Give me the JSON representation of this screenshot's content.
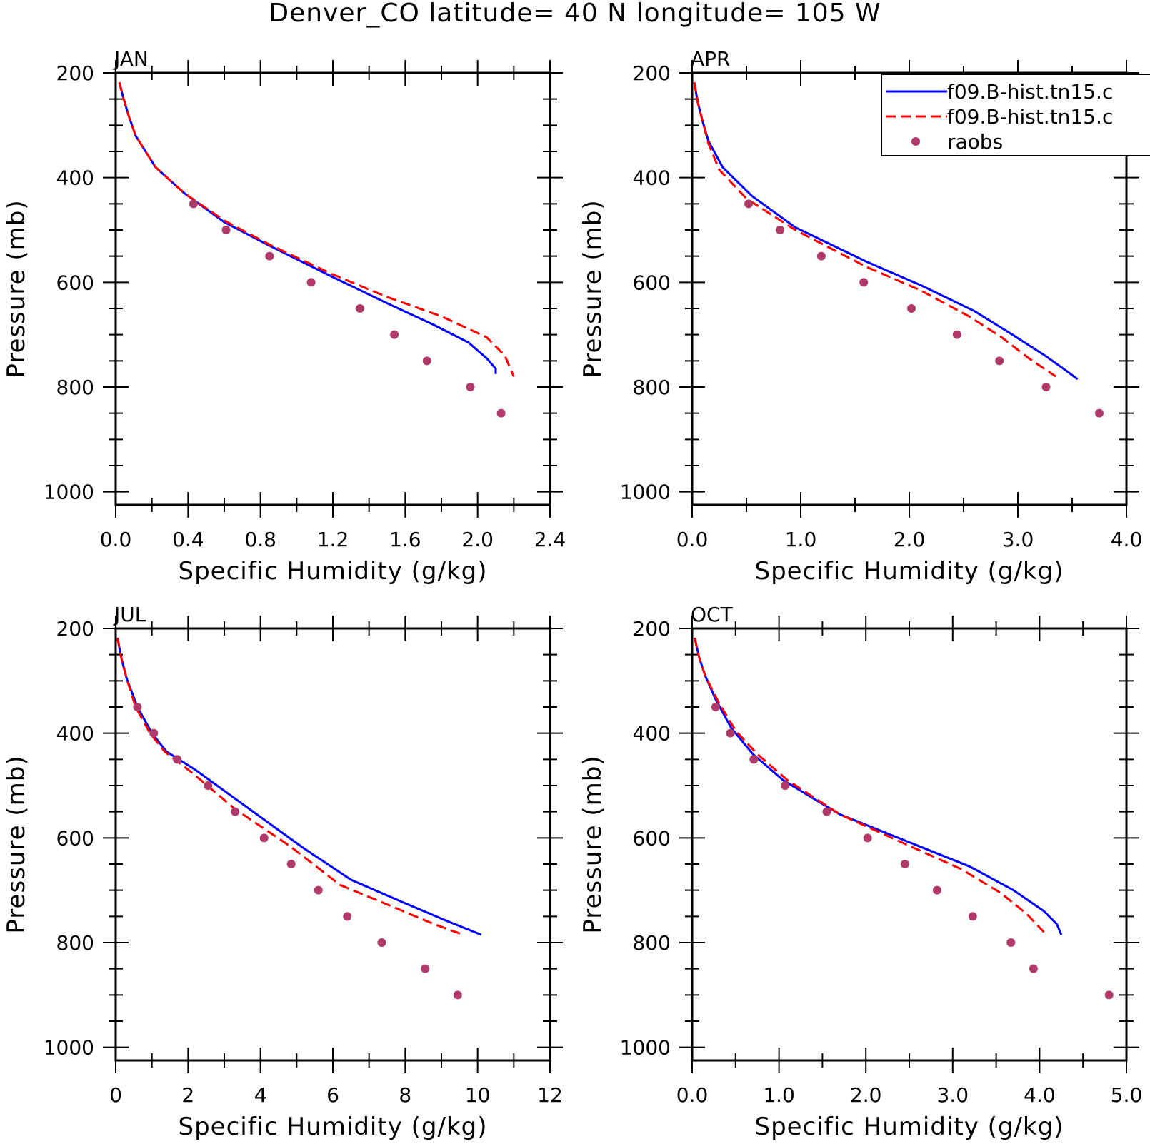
{
  "chart_data": {
    "type": "line",
    "title": "Denver_CO  latitude= 40 N longitude= 105 W",
    "ylabel": "Pressure (mb)",
    "xlabel": "Specific Humidity (g/kg)",
    "y_axis_inverted": true,
    "ylim": [
      1025,
      200
    ],
    "yticks": [
      200,
      400,
      600,
      800,
      1000
    ],
    "yticks_labels": [
      "200",
      "400",
      "600",
      "800",
      "1000"
    ],
    "legend": {
      "placement": "top-right",
      "entries": [
        {
          "label": "f09.B-hist.tn15.c",
          "style": "solid",
          "color": "#0000ff"
        },
        {
          "label": "f09.B-hist.tn15.c",
          "style": "dashed",
          "color": "#ff0000"
        },
        {
          "label": "raobs",
          "style": "marker",
          "color": "#b03a6a"
        }
      ]
    },
    "panels": [
      {
        "label": "JAN",
        "xlim": [
          0,
          2.4
        ],
        "xticks": [
          0,
          0.4,
          0.8,
          1.2,
          1.6,
          2.0,
          2.4
        ],
        "xticks_labels": [
          "0.0",
          "0.4",
          "0.8",
          "1.2",
          "1.6",
          "2.0",
          "2.4"
        ],
        "series": [
          {
            "style": "solid",
            "color": "#0000ff",
            "points": [
              [
                0.02,
                218
              ],
              [
                0.04,
                245
              ],
              [
                0.07,
                280
              ],
              [
                0.11,
                320
              ],
              [
                0.22,
                380
              ],
              [
                0.38,
                430
              ],
              [
                0.6,
                485
              ],
              [
                0.85,
                530
              ],
              [
                1.2,
                590
              ],
              [
                1.5,
                640
              ],
              [
                1.75,
                680
              ],
              [
                1.95,
                715
              ],
              [
                2.05,
                745
              ],
              [
                2.1,
                765
              ],
              [
                2.1,
                775
              ]
            ]
          },
          {
            "style": "dashed",
            "color": "#ff0000",
            "points": [
              [
                0.02,
                218
              ],
              [
                0.04,
                245
              ],
              [
                0.07,
                280
              ],
              [
                0.11,
                320
              ],
              [
                0.22,
                380
              ],
              [
                0.38,
                430
              ],
              [
                0.6,
                482
              ],
              [
                0.85,
                528
              ],
              [
                1.2,
                585
              ],
              [
                1.5,
                628
              ],
              [
                1.8,
                665
              ],
              [
                2.05,
                705
              ],
              [
                2.15,
                740
              ],
              [
                2.2,
                780
              ]
            ]
          },
          {
            "style": "marker",
            "color": "#b03a6a",
            "points": [
              [
                0.43,
                450
              ],
              [
                0.61,
                500
              ],
              [
                0.85,
                550
              ],
              [
                1.08,
                600
              ],
              [
                1.35,
                650
              ],
              [
                1.54,
                700
              ],
              [
                1.72,
                750
              ],
              [
                1.96,
                800
              ],
              [
                2.13,
                850
              ]
            ]
          }
        ]
      },
      {
        "label": "APR",
        "xlim": [
          0,
          4.0
        ],
        "xticks": [
          0,
          1,
          2,
          3,
          4
        ],
        "xticks_labels": [
          "0.0",
          "1.0",
          "2.0",
          "3.0",
          "4.0"
        ],
        "series": [
          {
            "style": "solid",
            "color": "#0000ff",
            "points": [
              [
                0.02,
                218
              ],
              [
                0.05,
                255
              ],
              [
                0.1,
                295
              ],
              [
                0.15,
                330
              ],
              [
                0.28,
                380
              ],
              [
                0.55,
                435
              ],
              [
                0.95,
                495
              ],
              [
                1.6,
                560
              ],
              [
                2.1,
                605
              ],
              [
                2.6,
                655
              ],
              [
                2.95,
                700
              ],
              [
                3.25,
                740
              ],
              [
                3.42,
                765
              ],
              [
                3.55,
                785
              ]
            ]
          },
          {
            "style": "dashed",
            "color": "#ff0000",
            "points": [
              [
                0.02,
                218
              ],
              [
                0.05,
                255
              ],
              [
                0.1,
                295
              ],
              [
                0.15,
                335
              ],
              [
                0.25,
                385
              ],
              [
                0.5,
                440
              ],
              [
                0.95,
                500
              ],
              [
                1.6,
                570
              ],
              [
                2.1,
                615
              ],
              [
                2.55,
                665
              ],
              [
                2.85,
                705
              ],
              [
                3.1,
                745
              ],
              [
                3.35,
                780
              ]
            ]
          },
          {
            "style": "marker",
            "color": "#b03a6a",
            "points": [
              [
                0.52,
                450
              ],
              [
                0.81,
                500
              ],
              [
                1.19,
                550
              ],
              [
                1.58,
                600
              ],
              [
                2.02,
                650
              ],
              [
                2.44,
                700
              ],
              [
                2.83,
                750
              ],
              [
                3.26,
                800
              ],
              [
                3.75,
                850
              ]
            ]
          }
        ]
      },
      {
        "label": "JUL",
        "xlim": [
          0,
          12
        ],
        "xticks": [
          0,
          2,
          4,
          6,
          8,
          10,
          12
        ],
        "xticks_labels": [
          "0",
          "2",
          "4",
          "6",
          "8",
          "10",
          "12"
        ],
        "series": [
          {
            "style": "solid",
            "color": "#0000ff",
            "points": [
              [
                0.05,
                218
              ],
              [
                0.15,
                255
              ],
              [
                0.3,
                295
              ],
              [
                0.6,
                350
              ],
              [
                1.0,
                400
              ],
              [
                1.4,
                435
              ],
              [
                2.2,
                470
              ],
              [
                3.5,
                535
              ],
              [
                5.2,
                620
              ],
              [
                6.5,
                680
              ],
              [
                8,
                725
              ],
              [
                9.2,
                760
              ],
              [
                10.1,
                785
              ]
            ]
          },
          {
            "style": "dashed",
            "color": "#ff0000",
            "points": [
              [
                0.05,
                218
              ],
              [
                0.15,
                255
              ],
              [
                0.3,
                295
              ],
              [
                0.55,
                350
              ],
              [
                0.95,
                400
              ],
              [
                1.35,
                435
              ],
              [
                2.1,
                475
              ],
              [
                3.3,
                545
              ],
              [
                4.8,
                615
              ],
              [
                6.2,
                690
              ],
              [
                7.6,
                730
              ],
              [
                8.8,
                765
              ],
              [
                9.6,
                785
              ]
            ]
          },
          {
            "style": "marker",
            "color": "#b03a6a",
            "points": [
              [
                0.6,
                350
              ],
              [
                1.05,
                400
              ],
              [
                1.7,
                450
              ],
              [
                2.55,
                500
              ],
              [
                3.3,
                550
              ],
              [
                4.1,
                600
              ],
              [
                4.85,
                650
              ],
              [
                5.6,
                700
              ],
              [
                6.4,
                750
              ],
              [
                7.35,
                800
              ],
              [
                8.55,
                850
              ],
              [
                9.45,
                900
              ]
            ]
          }
        ]
      },
      {
        "label": "OCT",
        "xlim": [
          0,
          5.0
        ],
        "xticks": [
          0,
          1,
          2,
          3,
          4,
          5
        ],
        "xticks_labels": [
          "0.0",
          "1.0",
          "2.0",
          "3.0",
          "4.0",
          "5.0"
        ],
        "series": [
          {
            "style": "solid",
            "color": "#0000ff",
            "points": [
              [
                0.03,
                218
              ],
              [
                0.08,
                255
              ],
              [
                0.15,
                290
              ],
              [
                0.27,
                335
              ],
              [
                0.45,
                390
              ],
              [
                0.7,
                440
              ],
              [
                1.05,
                490
              ],
              [
                1.7,
                555
              ],
              [
                2.6,
                615
              ],
              [
                3.2,
                655
              ],
              [
                3.7,
                700
              ],
              [
                4.05,
                740
              ],
              [
                4.2,
                765
              ],
              [
                4.25,
                785
              ]
            ]
          },
          {
            "style": "dashed",
            "color": "#ff0000",
            "points": [
              [
                0.03,
                218
              ],
              [
                0.08,
                255
              ],
              [
                0.15,
                290
              ],
              [
                0.3,
                340
              ],
              [
                0.5,
                395
              ],
              [
                0.75,
                440
              ],
              [
                1.1,
                490
              ],
              [
                1.7,
                555
              ],
              [
                2.5,
                615
              ],
              [
                3.1,
                660
              ],
              [
                3.55,
                705
              ],
              [
                3.85,
                745
              ],
              [
                4.05,
                780
              ]
            ]
          },
          {
            "style": "marker",
            "color": "#b03a6a",
            "points": [
              [
                0.27,
                350
              ],
              [
                0.44,
                400
              ],
              [
                0.71,
                450
              ],
              [
                1.07,
                500
              ],
              [
                1.55,
                550
              ],
              [
                2.02,
                600
              ],
              [
                2.45,
                650
              ],
              [
                2.82,
                700
              ],
              [
                3.23,
                750
              ],
              [
                3.67,
                800
              ],
              [
                3.93,
                850
              ],
              [
                4.8,
                900
              ]
            ]
          }
        ]
      }
    ]
  }
}
